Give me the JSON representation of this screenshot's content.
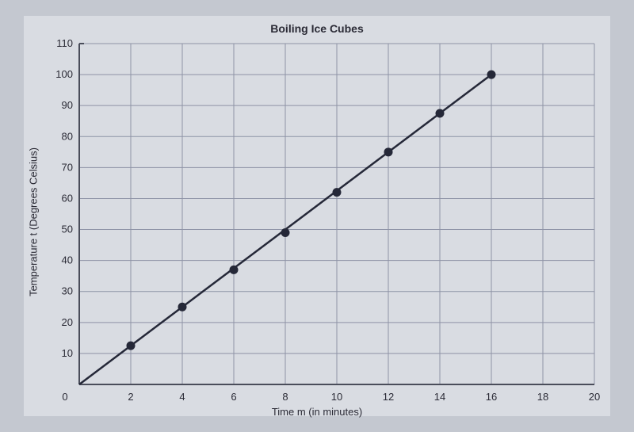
{
  "chart": {
    "type": "line-scatter",
    "title": "Boiling Ice Cubes",
    "xlabel": "Time m (in minutes)",
    "ylabel": "Temperature t (Degrees Celsius)",
    "xlim": [
      0,
      20
    ],
    "ylim": [
      0,
      110
    ],
    "xtick_step": 2,
    "ytick_step": 10,
    "xtick_labels": [
      "0",
      "2",
      "4",
      "6",
      "8",
      "10",
      "12",
      "14",
      "16",
      "18",
      "20"
    ],
    "ytick_labels": [
      "10",
      "20",
      "30",
      "40",
      "50",
      "60",
      "70",
      "80",
      "90",
      "100",
      "110"
    ],
    "background_color": "#d9dce2",
    "outer_background": "#c4c8d0",
    "grid_color": "#8e93a6",
    "axis_color": "#4a4d5a",
    "line_color": "#252838",
    "marker_color": "#252838",
    "marker_radius": 5.5,
    "line_width": 2.5,
    "title_fontsize": 14,
    "label_fontsize": 13,
    "tick_fontsize": 13,
    "line_start": {
      "x": 0,
      "y": 0
    },
    "line_end": {
      "x": 16,
      "y": 100
    },
    "points": [
      {
        "x": 2,
        "y": 12.5
      },
      {
        "x": 4,
        "y": 25
      },
      {
        "x": 6,
        "y": 37
      },
      {
        "x": 8,
        "y": 49
      },
      {
        "x": 10,
        "y": 62
      },
      {
        "x": 12,
        "y": 75
      },
      {
        "x": 14,
        "y": 87.5
      },
      {
        "x": 16,
        "y": 100
      }
    ]
  }
}
